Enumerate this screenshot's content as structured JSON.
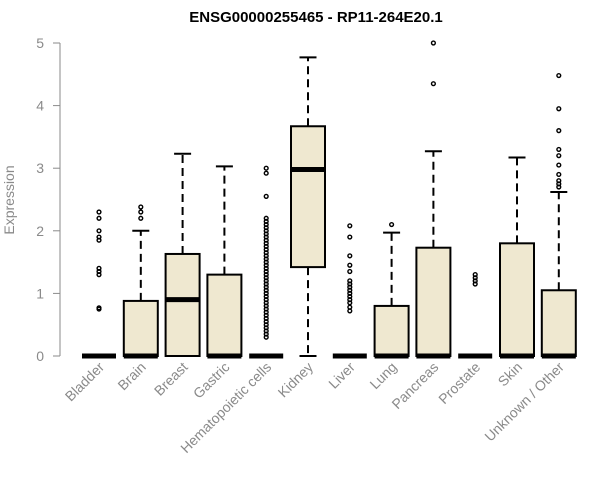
{
  "chart_data": {
    "type": "boxplot",
    "title": "ENSG00000255465 - RP11-264E20.1",
    "xlabel": "",
    "ylabel": "Expression",
    "ylim": [
      0,
      5
    ],
    "yticks": [
      0,
      1,
      2,
      3,
      4,
      5
    ],
    "grid": false,
    "box_fill": "#efe8d0",
    "categories": [
      "Bladder",
      "Brain",
      "Breast",
      "Gastric",
      "Hematopoietic cells",
      "Kidney",
      "Liver",
      "Lung",
      "Pancreas",
      "Prostate",
      "Skin",
      "Unknown / Other"
    ],
    "boxes": [
      {
        "category": "Bladder",
        "min": 0,
        "q1": 0,
        "median": 0,
        "q3": 0,
        "max": 0,
        "outliers": [
          0.75,
          0.77,
          1.3,
          1.35,
          1.4,
          1.85,
          1.9,
          2.0,
          2.2,
          2.3
        ]
      },
      {
        "category": "Brain",
        "min": 0,
        "q1": 0,
        "median": 0,
        "q3": 0.88,
        "max": 2.0,
        "outliers": [
          2.2,
          2.3,
          2.38
        ]
      },
      {
        "category": "Breast",
        "min": 0,
        "q1": 0,
        "median": 0.9,
        "q3": 1.63,
        "max": 3.23,
        "outliers": []
      },
      {
        "category": "Gastric",
        "min": 0,
        "q1": 0,
        "median": 0,
        "q3": 1.3,
        "max": 3.03,
        "outliers": []
      },
      {
        "category": "Hematopoietic cells",
        "min": 0,
        "q1": 0,
        "median": 0,
        "q3": 0,
        "max": 0,
        "outliers": [
          0.3,
          0.35,
          0.4,
          0.45,
          0.5,
          0.55,
          0.6,
          0.65,
          0.7,
          0.75,
          0.8,
          0.85,
          0.9,
          0.95,
          1.0,
          1.05,
          1.1,
          1.15,
          1.2,
          1.25,
          1.3,
          1.35,
          1.4,
          1.45,
          1.5,
          1.55,
          1.6,
          1.65,
          1.7,
          1.75,
          1.8,
          1.85,
          1.9,
          1.95,
          2.0,
          2.05,
          2.1,
          2.15,
          2.2,
          2.55,
          2.92,
          3.0
        ]
      },
      {
        "category": "Kidney",
        "min": 0,
        "q1": 1.42,
        "median": 2.98,
        "q3": 3.67,
        "max": 4.77,
        "outliers": []
      },
      {
        "category": "Liver",
        "min": 0,
        "q1": 0,
        "median": 0,
        "q3": 0,
        "max": 0,
        "outliers": [
          0.72,
          0.78,
          0.85,
          0.9,
          0.95,
          1.0,
          1.05,
          1.1,
          1.15,
          1.2,
          1.35,
          1.45,
          1.6,
          1.9,
          2.08
        ]
      },
      {
        "category": "Lung",
        "min": 0,
        "q1": 0,
        "median": 0,
        "q3": 0.8,
        "max": 1.97,
        "outliers": [
          2.1
        ]
      },
      {
        "category": "Pancreas",
        "min": 0,
        "q1": 0,
        "median": 0,
        "q3": 1.73,
        "max": 3.27,
        "outliers": [
          4.35,
          5.0
        ]
      },
      {
        "category": "Prostate",
        "min": 0,
        "q1": 0,
        "median": 0,
        "q3": 0,
        "max": 0,
        "outliers": [
          1.15,
          1.2,
          1.25,
          1.3
        ]
      },
      {
        "category": "Skin",
        "min": 0,
        "q1": 0,
        "median": 0,
        "q3": 1.8,
        "max": 3.17,
        "outliers": []
      },
      {
        "category": "Unknown / Other",
        "min": 0,
        "q1": 0,
        "median": 0,
        "q3": 1.05,
        "max": 2.62,
        "outliers": [
          2.7,
          2.75,
          2.8,
          2.9,
          3.05,
          3.2,
          3.3,
          3.6,
          3.95,
          4.48
        ]
      }
    ]
  }
}
